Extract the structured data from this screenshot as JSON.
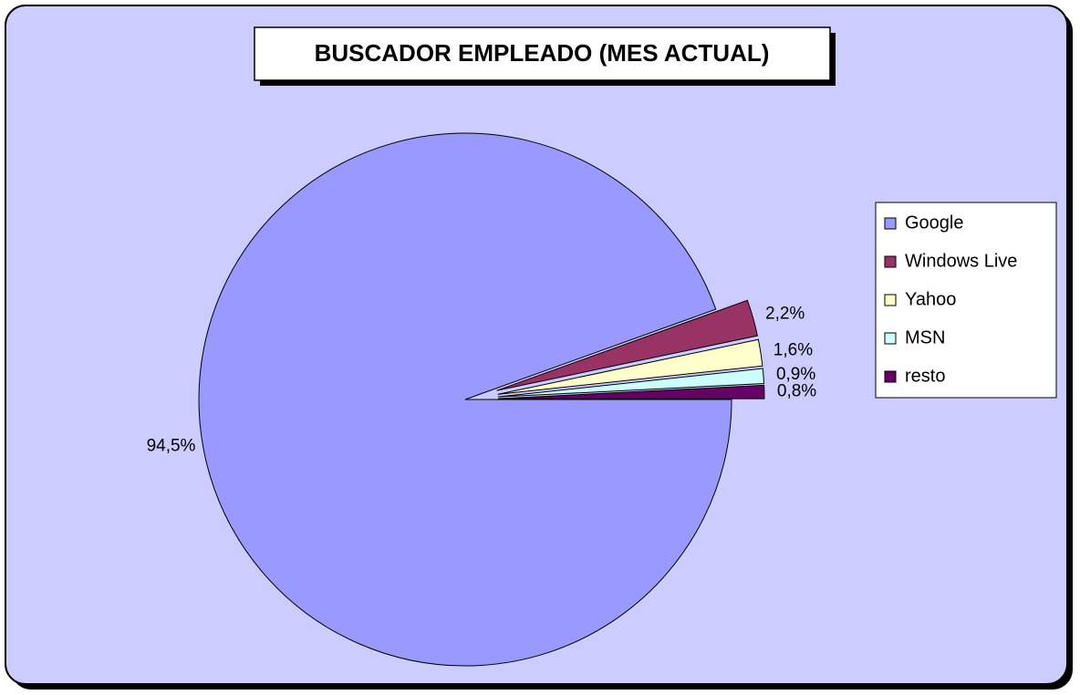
{
  "chart_data": {
    "type": "pie",
    "title": "BUSCADOR EMPLEADO (MES ACTUAL)",
    "categories": [
      "Google",
      "Windows Live",
      "Yahoo",
      "MSN",
      "resto"
    ],
    "values": [
      94.5,
      2.2,
      1.6,
      0.9,
      0.8
    ],
    "value_labels": [
      "94,5%",
      "2,2%",
      "1,6%",
      "0,9%",
      "0,8%"
    ],
    "colors": [
      "#9999ff",
      "#993366",
      "#ffffcc",
      "#ccffff",
      "#660066"
    ],
    "legend": "right"
  }
}
